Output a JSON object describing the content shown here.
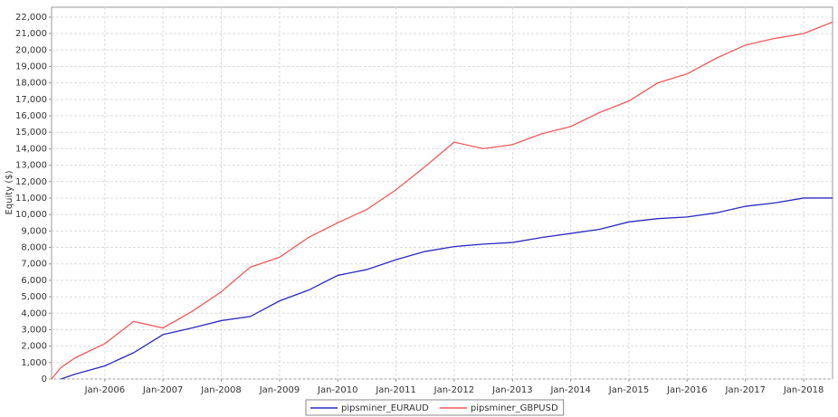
{
  "chart_data": {
    "type": "line",
    "y_label": "Equity ($)",
    "x": [
      "Feb-2005",
      "Apr-2005",
      "Jul-2005",
      "Jan-2006",
      "Jul-2006",
      "Jan-2007",
      "Jul-2007",
      "Jan-2008",
      "Jul-2008",
      "Jan-2009",
      "Jul-2009",
      "Jan-2010",
      "Jul-2010",
      "Jan-2011",
      "Jul-2011",
      "Jan-2012",
      "Jul-2012",
      "Jan-2013",
      "Jul-2013",
      "Jan-2014",
      "Jul-2014",
      "Jan-2015",
      "Jul-2015",
      "Jan-2016",
      "Jul-2016",
      "Jan-2017",
      "Jul-2017",
      "Jan-2018",
      "Jul-2018"
    ],
    "series": [
      {
        "name": "pipsminer_EURAUD",
        "color": "#2a2ac0",
        "values": [
          null,
          0,
          300,
          800,
          1600,
          2700,
          3100,
          3550,
          3800,
          4750,
          5400,
          6300,
          6650,
          7250,
          7750,
          8050,
          8200,
          8300,
          8600,
          8850,
          9100,
          9550,
          9750,
          9850,
          10100,
          10500,
          10700,
          11000,
          11000
        ]
      },
      {
        "name": "pipsminer_GBPUSD",
        "color": "#f05a5a",
        "values": [
          0,
          700,
          1300,
          2150,
          3500,
          3100,
          4100,
          5300,
          6800,
          7400,
          8600,
          9500,
          10300,
          11500,
          12900,
          14400,
          14000,
          14250,
          14900,
          15350,
          16200,
          16900,
          18000,
          18550,
          19500,
          20300,
          20700,
          21000,
          21700
        ]
      }
    ],
    "xlim": [
      "Feb-2005",
      "Jul-2018"
    ],
    "xticks": [
      "Jan-2006",
      "Jan-2007",
      "Jan-2008",
      "Jan-2009",
      "Jan-2010",
      "Jan-2011",
      "Jan-2012",
      "Jan-2013",
      "Jan-2014",
      "Jan-2015",
      "Jan-2016",
      "Jan-2017",
      "Jan-2018"
    ],
    "ylim": [
      0,
      22600
    ],
    "yticks": [
      0,
      {
        "value": 1000,
        "label": "1,000"
      },
      {
        "value": 2000,
        "label": "2,000"
      },
      {
        "value": 3000,
        "label": "3,000"
      },
      {
        "value": 4000,
        "label": "4,000"
      },
      {
        "value": 5000,
        "label": "5,000"
      },
      {
        "value": 6000,
        "label": "6,000"
      },
      {
        "value": 7000,
        "label": "7,000"
      },
      {
        "value": 8000,
        "label": "8,000"
      },
      {
        "value": 9000,
        "label": "9,000"
      },
      {
        "value": 10000,
        "label": "10,000"
      },
      {
        "value": 11000,
        "label": "11,000"
      },
      {
        "value": 12000,
        "label": "12,000"
      },
      {
        "value": 13000,
        "label": "13,000"
      },
      {
        "value": 14000,
        "label": "14,000"
      },
      {
        "value": 15000,
        "label": "15,000"
      },
      {
        "value": 16000,
        "label": "16,000"
      },
      {
        "value": 17000,
        "label": "17,000"
      },
      {
        "value": 18000,
        "label": "18,000"
      },
      {
        "value": 19000,
        "label": "19,000"
      },
      {
        "value": 20000,
        "label": "20,000"
      },
      {
        "value": 21000,
        "label": "21,000"
      },
      {
        "value": 22000,
        "label": "22,000"
      }
    ],
    "grid": true,
    "legend": "bottom"
  }
}
